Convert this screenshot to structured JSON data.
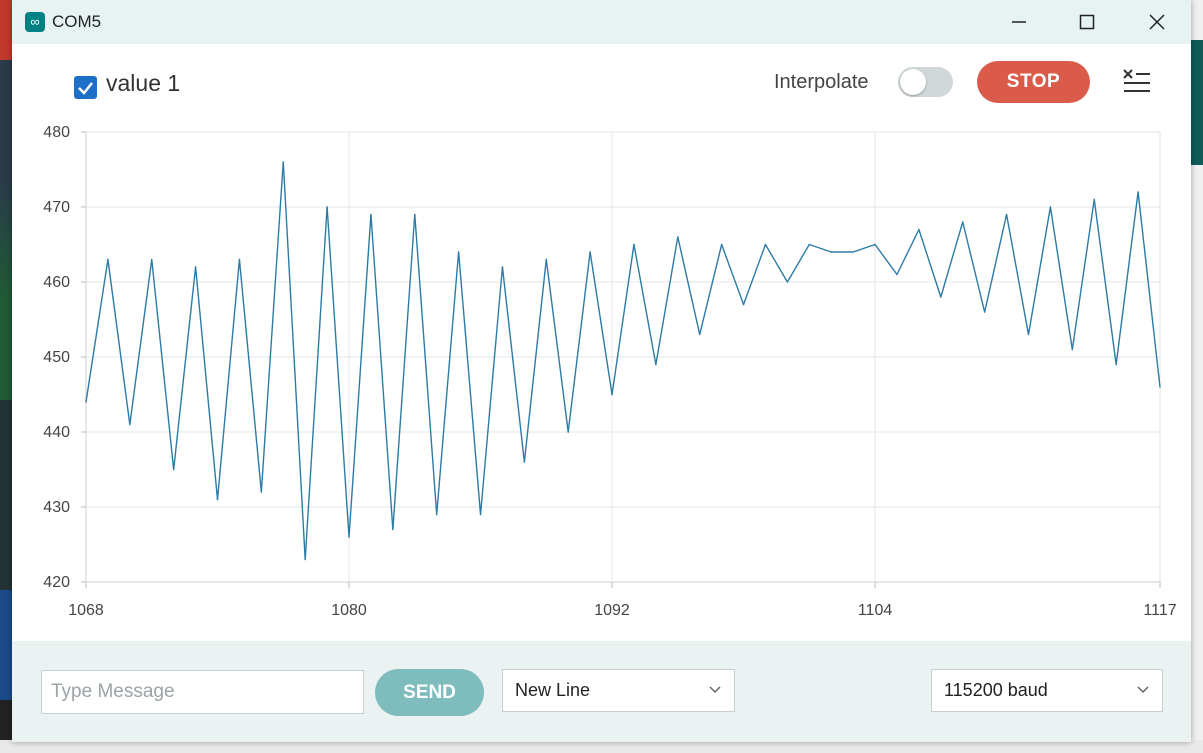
{
  "window": {
    "title": "COM5",
    "app_icon": "infinity-icon",
    "controls": [
      "minimize-icon",
      "maximize-icon",
      "close-icon"
    ]
  },
  "toolbar": {
    "series_checkbox_label": "value 1",
    "series_checked": true,
    "interpolate_label": "Interpolate",
    "interpolate_on": false,
    "stop_label": "STOP",
    "clear_icon": "clear-list-icon"
  },
  "chart_data": {
    "type": "line",
    "xlim": [
      1068,
      1117
    ],
    "ylim": [
      420,
      480
    ],
    "x_ticks": [
      "1068",
      "1080",
      "1092",
      "1104",
      "1117"
    ],
    "y_ticks": [
      "480",
      "470",
      "460",
      "450",
      "440",
      "430",
      "420"
    ],
    "grid": true,
    "series": [
      {
        "name": "value 1",
        "color": "#2c7ba5",
        "x": [
          1068,
          1069,
          1070,
          1071,
          1072,
          1073,
          1074,
          1075,
          1076,
          1077,
          1078,
          1079,
          1080,
          1081,
          1082,
          1083,
          1084,
          1085,
          1086,
          1087,
          1088,
          1089,
          1090,
          1091,
          1092,
          1093,
          1094,
          1095,
          1096,
          1097,
          1098,
          1099,
          1100,
          1101,
          1102,
          1103,
          1104,
          1105,
          1106,
          1107,
          1108,
          1109,
          1110,
          1111,
          1112,
          1113,
          1114,
          1115,
          1116,
          1117
        ],
        "values": [
          444,
          463,
          441,
          463,
          435,
          462,
          431,
          463,
          432,
          476,
          423,
          470,
          426,
          469,
          427,
          469,
          429,
          464,
          429,
          462,
          436,
          463,
          440,
          464,
          445,
          465,
          449,
          466,
          453,
          465,
          457,
          465,
          460,
          465,
          464,
          464,
          465,
          461,
          467,
          458,
          468,
          456,
          469,
          453,
          470,
          451,
          471,
          449,
          472,
          446
        ]
      }
    ]
  },
  "footer": {
    "message_placeholder": "Type Message",
    "message_value": "",
    "send_label": "SEND",
    "line_ending": "New Line",
    "baud_rate": "115200 baud"
  }
}
